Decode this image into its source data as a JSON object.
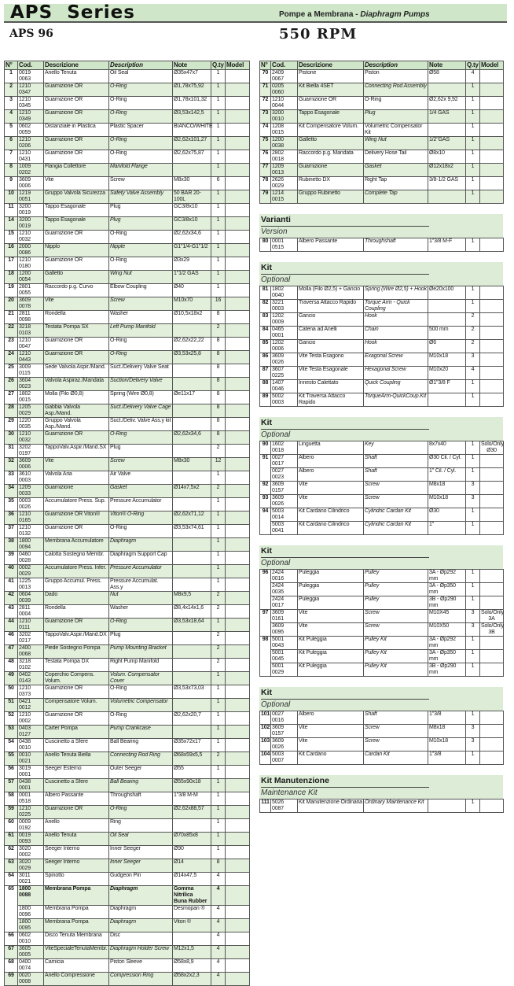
{
  "header": {
    "series": "APS  Series",
    "subtitle_it": "Pompe a Membrana - ",
    "subtitle_en": "Diaphragm Pumps",
    "model": "APS 96",
    "rpm": "550 RPM"
  },
  "colors": {
    "band": "#cfe6c8",
    "row_alt": "#e2efdb",
    "border": "#555555"
  },
  "columns": [
    "N°",
    "Cod.",
    "Descrizione",
    "Description",
    "Note",
    "Q.ty",
    "Model"
  ],
  "left": {
    "rows": [
      [
        "1",
        "0019 0063",
        "Anello Tenuta",
        "Oil Seal",
        "Ø35x47x7",
        "1",
        ""
      ],
      [
        "2",
        "1210 0347",
        "Guarnizione OR",
        "O-Ring",
        "Ø1,78x75,92",
        "1",
        ""
      ],
      [
        "3",
        "1210 0345",
        "Guarnizione OR",
        "O-Ring",
        "Ø1,78x101,32",
        "1",
        ""
      ],
      [
        "4",
        "1210 0349",
        "Guarnizione OR",
        "O-Ring",
        "Ø3,53x142,5",
        "1",
        ""
      ],
      [
        "5",
        "0602 0059",
        "Distanziale in Plastica",
        "Plastic Spacer",
        "BIANCO/WHITE",
        "1",
        ""
      ],
      [
        "6",
        "1210 0206",
        "Guarnizione OR",
        "O-Ring",
        "Ø2,62x101,27",
        "1",
        ""
      ],
      [
        "7",
        "1210 0431",
        "Guarnizione OR",
        "O-Ring",
        "Ø2,62x75,87",
        "1",
        ""
      ],
      [
        "8",
        "1009 0202",
        "Flangia Collettore",
        "Manifold Flange",
        "",
        "1",
        ""
      ],
      [
        "9",
        "3609 0006",
        "Vite",
        "Screw",
        "M8x30",
        "6",
        ""
      ],
      [
        "10",
        "1219 0051",
        "Gruppo Valvola Sicurezza",
        "Safety Valve Assembly",
        "50 BAR 20-100L",
        "1",
        ""
      ],
      [
        "11",
        "3200 0019",
        "Tappo Esagonale",
        "Plug",
        "GC3/8x10",
        "1",
        ""
      ],
      [
        "14",
        "3200 0019",
        "Tappo Esagonale",
        "Plug",
        "GC3/8x10",
        "1",
        ""
      ],
      [
        "15",
        "1210 0032",
        "Guarnizione OR",
        "O-Ring",
        "Ø2,62x34,6",
        "1",
        ""
      ],
      [
        "16",
        "2000 0086",
        "Nipplo",
        "Nipple",
        "G1\"1/4-G1\"1/2",
        "1",
        ""
      ],
      [
        "17",
        "1210 0180",
        "Guarnizione OR",
        "O-Ring",
        "Ø3x29",
        "1",
        ""
      ],
      [
        "18",
        "1200 0054",
        "Galletto",
        "Wing Nut",
        "1\"1/2 GAS",
        "1",
        ""
      ],
      [
        "19",
        "2801 0055",
        "Raccordo p.g. Curvo",
        "Elbow Coupling",
        "Ø40",
        "1",
        ""
      ],
      [
        "20",
        "3609 0078",
        "Vite",
        "Screw",
        "M10x70",
        "16",
        ""
      ],
      [
        "21",
        "2811 0098",
        "Rondella",
        "Washer",
        "Ø10,5x18x2",
        "8",
        ""
      ],
      [
        "22",
        "3218 0103",
        "Testata Pompa SX",
        "Left Pump Manifold",
        "",
        "2",
        ""
      ],
      [
        "23",
        "1210 0047",
        "Guarnizione OR",
        "O-Ring",
        "Ø2,62x22,22",
        "8",
        ""
      ],
      [
        "24",
        "1210 0443",
        "Guarnizione OR",
        "O-Ring",
        "Ø3,53x25,8",
        "8",
        ""
      ],
      [
        "25",
        "3009 0115",
        "Sede Valvola Aspir./Mand.",
        "Suct./Delivery Valve Seat",
        "",
        "8",
        ""
      ],
      [
        "26",
        "3604 0023",
        "Valvola Aspiraz./Mandata",
        "Suction/Delivery Valve",
        "",
        "8",
        ""
      ],
      [
        "27",
        "1802 0015",
        "Molla (Filo Ø0,8)",
        "Spring (Wire Ø0,8)",
        "Øe11x17",
        "8",
        ""
      ],
      [
        "28",
        "1205 0029",
        "Gabbia Valvola Asp./Mand.",
        "Suct./Delivery Valve Cage",
        "",
        "8",
        ""
      ],
      [
        "29",
        "1220 0035",
        "Gruppo Valvola Asp./Mand.",
        "Suct./Deliv. Valve Ass.y kit",
        "",
        "8",
        ""
      ],
      [
        "30",
        "1210 0032",
        "Guarnizione OR",
        "O-Ring",
        "Ø2,62x34,6",
        "8",
        ""
      ],
      [
        "31",
        "3202 0197",
        "TappoValv.Aspir./Mand.SX",
        "Plug",
        "",
        "2",
        ""
      ],
      [
        "32",
        "3609 0006",
        "Vite",
        "Screw",
        "M8x30",
        "12",
        ""
      ],
      [
        "33",
        "3610 0003",
        "Valvola Aria",
        "Air Valve",
        "",
        "1",
        ""
      ],
      [
        "34",
        "1209 0033",
        "Guarnizione",
        "Gasket",
        "Ø14x7,5x2",
        "2",
        ""
      ],
      [
        "35",
        "0003 0026",
        "Accumulatore Press. Sup.",
        "Pressure Accumulator",
        "",
        "1",
        ""
      ],
      [
        "36",
        "1210 0165",
        "Guarnizione OR Viton®",
        "Viton® O-Ring",
        "Ø2,62x71,12",
        "1",
        ""
      ],
      [
        "37",
        "1210 0132",
        "Guarnizione OR",
        "O-Ring",
        "Ø3,53x74,61",
        "1",
        ""
      ],
      [
        "38",
        "1800 0094",
        "Membrana Accumulatore",
        "Diaphragm",
        "",
        "1",
        ""
      ],
      [
        "39",
        "0460 0028",
        "Calotta Sostegno Membr.",
        "Diaphragm Support Cap",
        "",
        "1",
        ""
      ],
      [
        "40",
        "0002 0029",
        "Accumulatore Press. Infer.",
        "Pressure Accumulator",
        "",
        "1",
        ""
      ],
      [
        "41",
        "1225 0013",
        "Gruppo Accumul. Press.",
        "Pressure Accumulat. Ass.y",
        "",
        "1",
        ""
      ],
      [
        "42",
        "0604 0039",
        "Dado",
        "Nut",
        "M8x9,5",
        "2",
        ""
      ],
      [
        "43",
        "2811 0004",
        "Rondella",
        "Washer",
        "Ø8,4x14x1,6",
        "2",
        ""
      ],
      [
        "44",
        "1210 0111",
        "Guarnizione OR",
        "O-Ring",
        "Ø3,53x18,64",
        "1",
        ""
      ],
      [
        "46",
        "3202 0217",
        "TappoValv.Aspir./Mand.DX",
        "Plug",
        "",
        "2",
        ""
      ],
      [
        "47",
        "2400 0068",
        "Piede Sostegno Pompa",
        "Pump Mounting Bracket",
        "",
        "2",
        ""
      ],
      [
        "48",
        "3218 0102",
        "Testata Pompa DX",
        "Right Pump Manifold",
        "",
        "2",
        ""
      ],
      [
        "49",
        "0402 0143",
        "Coperchio Compens. Volum.",
        "Volum. Compensator Cover",
        "",
        "1",
        ""
      ],
      [
        "50",
        "1210 0373",
        "Guarnizione OR",
        "O-Ring",
        "Ø3,53x73,03",
        "1",
        ""
      ],
      [
        "51",
        "0421 0012",
        "Compensatore Volum.",
        "Volumetric  Compensator",
        "",
        "1",
        ""
      ],
      [
        "52",
        "1210 0002",
        "Guarnizione OR",
        "O-Ring",
        "Ø2,62x20,7",
        "1",
        ""
      ],
      [
        "53",
        "0403 0127",
        "Carter Pompa",
        "Pump Crankcase",
        "",
        "1",
        ""
      ],
      [
        "54",
        "0438 0010",
        "Cuscinetto a Sfere",
        "Ball Bearing",
        "Ø35x72x17",
        "1",
        ""
      ],
      [
        "55",
        "0010 0021",
        "Anello Tenuta Biella",
        "Connecting Rod Ring",
        "Ø68x59x5,5",
        "2",
        ""
      ],
      [
        "56",
        "3019 0001",
        "Seeger Esterno",
        "Outer Seeger",
        "Ø55",
        "1",
        ""
      ],
      [
        "57",
        "0438 0001",
        "Cuscinetto a Sfere",
        "Ball Bearing",
        "Ø55x90x18",
        "1",
        ""
      ],
      [
        "58",
        "0001 0518",
        "Albero Passante",
        "Throughshaft",
        "1\"3/8 M-M",
        "1",
        ""
      ],
      [
        "59",
        "1210 0225",
        "Guarnizione OR",
        "O-Ring",
        "Ø2,62x88,57",
        "1",
        ""
      ],
      [
        "60",
        "0009 0192",
        "Anello",
        "Ring",
        "",
        "1",
        ""
      ],
      [
        "61",
        "0019 0093",
        "Anello Tenuta",
        "Oil Seal",
        "Ø70x85x8",
        "1",
        ""
      ],
      [
        "62",
        "3020 0002",
        "Seeger Interno",
        "Inner Seeger",
        "Ø90",
        "1",
        ""
      ],
      [
        "63",
        "3020 0029",
        "Seeger Interno",
        "Inner Seeger",
        "Ø14",
        "8",
        ""
      ],
      [
        "64",
        "3011 0021",
        "Spinotto",
        "Gudgeon Pin",
        "Ø14x47,5",
        "4",
        ""
      ],
      [
        "65",
        "1800 0088",
        "Membrana Pompa",
        "Diaphragm",
        "Gomma Nitrilica\nBuna Rubber",
        "4",
        ""
      ],
      [
        "",
        "1800 0096",
        "Membrana Pompa",
        "Diaphragm",
        "Desmopan ®",
        "4",
        ""
      ],
      [
        "",
        "1800 0095",
        "Membrana Pompa",
        "Diaphragm",
        "Viton ®",
        "4",
        ""
      ],
      [
        "66",
        "0602 0010",
        "Disco Tenuta Membrana",
        "Disc",
        "",
        "4",
        ""
      ],
      [
        "67",
        "3605 0005",
        "ViteSpecialeTenutaMembr.",
        "Diaphragm Holder Screw",
        "M12x1,5",
        "4",
        ""
      ],
      [
        "68",
        "0400 0074",
        "Camicia",
        "Piston Sleeve",
        "Ø58x8,9",
        "4",
        ""
      ],
      [
        "69",
        "0020 0008",
        "Anello Compressione",
        "Compression Ring",
        "Ø58x2x2,3",
        "4",
        ""
      ]
    ],
    "bold_row": "65"
  },
  "right": {
    "rows": [
      [
        "70",
        "2409 0067",
        "Pistone",
        "Piston",
        "Ø58",
        "4",
        ""
      ],
      [
        "71",
        "0205 0060",
        "Kit Biella 4SET",
        "Connecting Rod Assembly",
        "",
        "1",
        ""
      ],
      [
        "72",
        "1210 0044",
        "Guarnizione OR",
        "O-Ring",
        "Ø2,62x 9,92",
        "1",
        ""
      ],
      [
        "73",
        "3200 0010",
        "Tappo Esagonale",
        "Plug",
        "1/4 GAS",
        "1",
        ""
      ],
      [
        "74",
        "1208 0015",
        "Kit Compensatore Volum.",
        "Volumetric  Compensator Kit",
        "",
        "1",
        ""
      ],
      [
        "75",
        "1200 0038",
        "Galletto",
        "Wing Nut",
        "1/2\"GAS",
        "1",
        ""
      ],
      [
        "76",
        "2802 0018",
        "Raccordo p.g. Mandata",
        "Delivery Hose Tail",
        "Ø8x10",
        "1",
        ""
      ],
      [
        "77",
        "1209 0013",
        "Guarnizione",
        "Gasket",
        "Ø12x18x2",
        "1",
        ""
      ],
      [
        "78",
        "2626 0029",
        "Rubinetto DX",
        "Right Tap",
        "3/8-1/2 GAS",
        "1",
        ""
      ],
      [
        "79",
        "1214 0015",
        "Gruppo Rubinetto",
        "Complete Tap",
        "",
        "1",
        ""
      ]
    ]
  },
  "sections": [
    {
      "title": "Varianti",
      "subtitle": "Version",
      "rows": [
        [
          "80",
          "0001 0515",
          "Albero Passante",
          "Throughshaft",
          "1\"3/8 M-F",
          "1",
          ""
        ]
      ]
    },
    {
      "title": "Kit",
      "subtitle": "Optional",
      "rows": [
        [
          "81",
          "1802 0040",
          "Molla (Filo Ø2,5) + Gancio",
          "Spring (Wire Ø2,5) + Hook",
          "Øe20x100",
          "1",
          ""
        ],
        [
          "82",
          "3221 0003",
          "Traversa Attacco Rapido",
          "Torque Arm - Quick Coupling",
          "",
          "1",
          ""
        ],
        [
          "83",
          "1202 0009",
          "Gancio",
          "Hook",
          "",
          "2",
          ""
        ],
        [
          "84",
          "0465 0001",
          "Catena ad Anelli",
          "Chain",
          "500 mm",
          "2",
          ""
        ],
        [
          "85",
          "1202 0006",
          "Gancio",
          "Hook",
          "Ø6",
          "2",
          ""
        ],
        [
          "86",
          "3609 0026",
          "Vite Testa Esagono",
          "Exagonal Screw",
          "M10x18",
          "3",
          ""
        ],
        [
          "87",
          "3607 0225",
          "Vite Testa Esagonale",
          "Hexagonal Screw",
          "M10x20",
          "4",
          ""
        ],
        [
          "88",
          "1407 0046",
          "Innesto Calettato",
          "Quick Coupling",
          "Ø1\"3/8 F",
          "1",
          ""
        ],
        [
          "89",
          "5002 0003",
          "Kit Traversa Attacco Rapido",
          "TorqueArm-QuickCoup.Kit",
          "",
          "1",
          ""
        ]
      ]
    },
    {
      "title": "Kit",
      "subtitle": "Optional",
      "rows": [
        [
          "90",
          "1602 0018",
          "Linguetta",
          "Key",
          "8x7x40",
          "1",
          "Solo/Only\nØ30"
        ],
        [
          "91",
          "0027 0017",
          "Albero",
          "Shaft",
          "Ø30 Cil. / Cyl.",
          "1",
          ""
        ],
        [
          "",
          "0027 0023",
          "Albero",
          "Shaft",
          "1\" Cil. / Cyl.",
          "1",
          ""
        ],
        [
          "92",
          "3609 0157",
          "Vite",
          "Screw",
          "M8x18",
          "3",
          ""
        ],
        [
          "93",
          "3609 0026",
          "Vite",
          "Screw",
          "M10x18",
          "3",
          ""
        ],
        [
          "94",
          "5003 0014",
          "Kit Cardano Cilindrico",
          "Cylindric Cardan Kit",
          "Ø30",
          "1",
          ""
        ],
        [
          "",
          "5003 0041",
          "Kit Cardano Cilindrico",
          "Cylindric Cardan Kit",
          "1\"",
          "1",
          ""
        ]
      ]
    },
    {
      "title": "Kit",
      "subtitle": "Optional",
      "rows": [
        [
          "96",
          "2424 0016",
          "Puleggia",
          "Pulley",
          "3A - Øp292 mm",
          "1",
          ""
        ],
        [
          "",
          "2424 0035",
          "Puleggia",
          "Pulley",
          "3A - Øp350 mm",
          "1",
          ""
        ],
        [
          "",
          "2424 0017",
          "Puleggia",
          "Pulley",
          "3B - Øp290 mm",
          "1",
          ""
        ],
        [
          "97",
          "3609 0161",
          "Vite",
          "Screw",
          "M10X45",
          "3",
          "Solo/Only\n3A"
        ],
        [
          "",
          "3609 0095",
          "Vite",
          "Screw",
          "M10X50",
          "3",
          "Solo/Only\n3B"
        ],
        [
          "98",
          "5001 0043",
          "Kit Puleggia",
          "Pulley Kit",
          "3A - Øp292 mm",
          "1",
          ""
        ],
        [
          "",
          "5001 0045",
          "Kit Puleggia",
          "Pulley Kit",
          "3A - Øp350 mm",
          "1",
          ""
        ],
        [
          "",
          "5001 0029",
          "Kit Puleggia",
          "Pulley Kit",
          "3B - Øp290 mm",
          "1",
          ""
        ]
      ]
    },
    {
      "title": "Kit",
      "subtitle": "Optional",
      "rows": [
        [
          "101",
          "0027 0016",
          "Albero",
          "Shaft",
          "1\"3/8",
          "1",
          ""
        ],
        [
          "102",
          "3609 0157",
          "Vite",
          "Screw",
          "M8x18",
          "3",
          ""
        ],
        [
          "103",
          "3609 0026",
          "Vite",
          "Screw",
          "M10x18",
          "3",
          ""
        ],
        [
          "104",
          "5003 0007",
          "Kit Cardano",
          "Cardan Kit",
          "1\"3/8",
          "1",
          ""
        ]
      ]
    },
    {
      "title": "Kit Manutenzione",
      "subtitle": "Maintenance Kit",
      "rows": [
        [
          "111",
          "5026 0087",
          "Kit Manutenzione Ordinaria",
          "Ordinary Maintenance Kit",
          "",
          "1",
          ""
        ]
      ]
    }
  ]
}
